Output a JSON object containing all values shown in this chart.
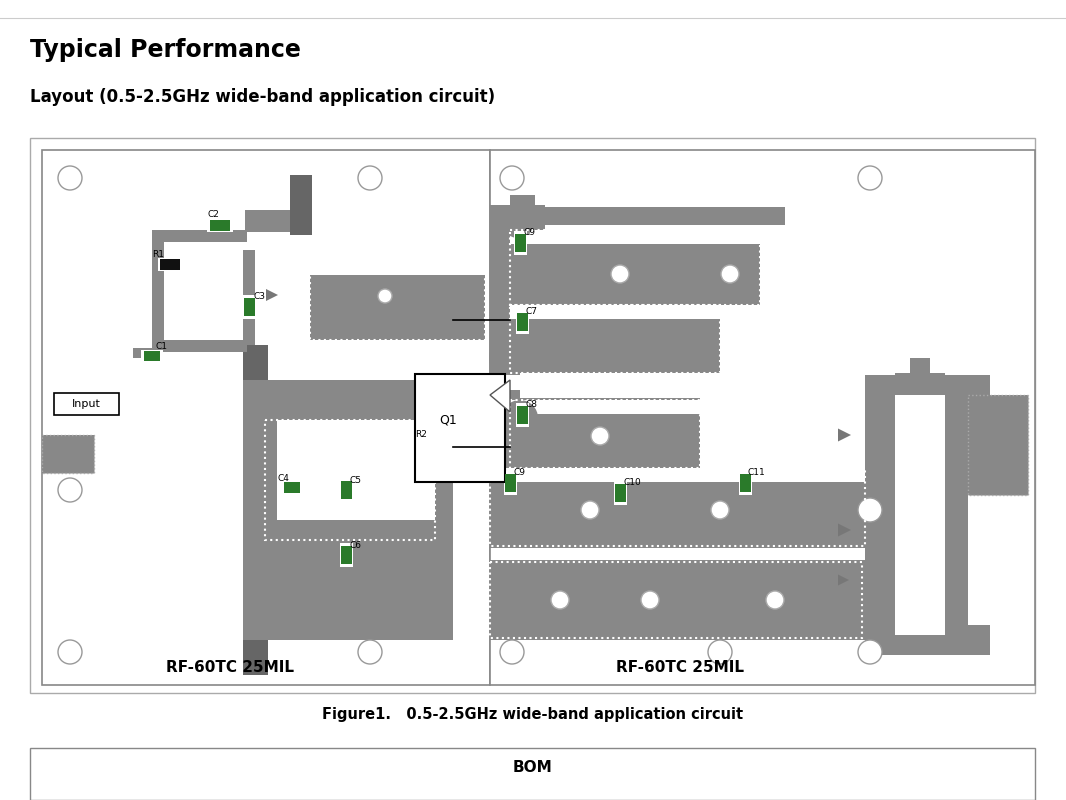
{
  "title1": "Typical Performance",
  "title2": "Layout (0.5-2.5GHz wide-band application circuit)",
  "figure_caption": "Figure1.   0.5-2.5GHz wide-band application circuit",
  "bg_color": "#ffffff",
  "pcb_gray": "#888888",
  "pcb_dark": "#666666",
  "pcb_mid": "#777777",
  "green_color": "#2a7a2a",
  "label_left": "RF-60TC 25MIL",
  "label_right": "RF-60TC 25MIL",
  "input_label": "Input",
  "q1_label": "Q1"
}
